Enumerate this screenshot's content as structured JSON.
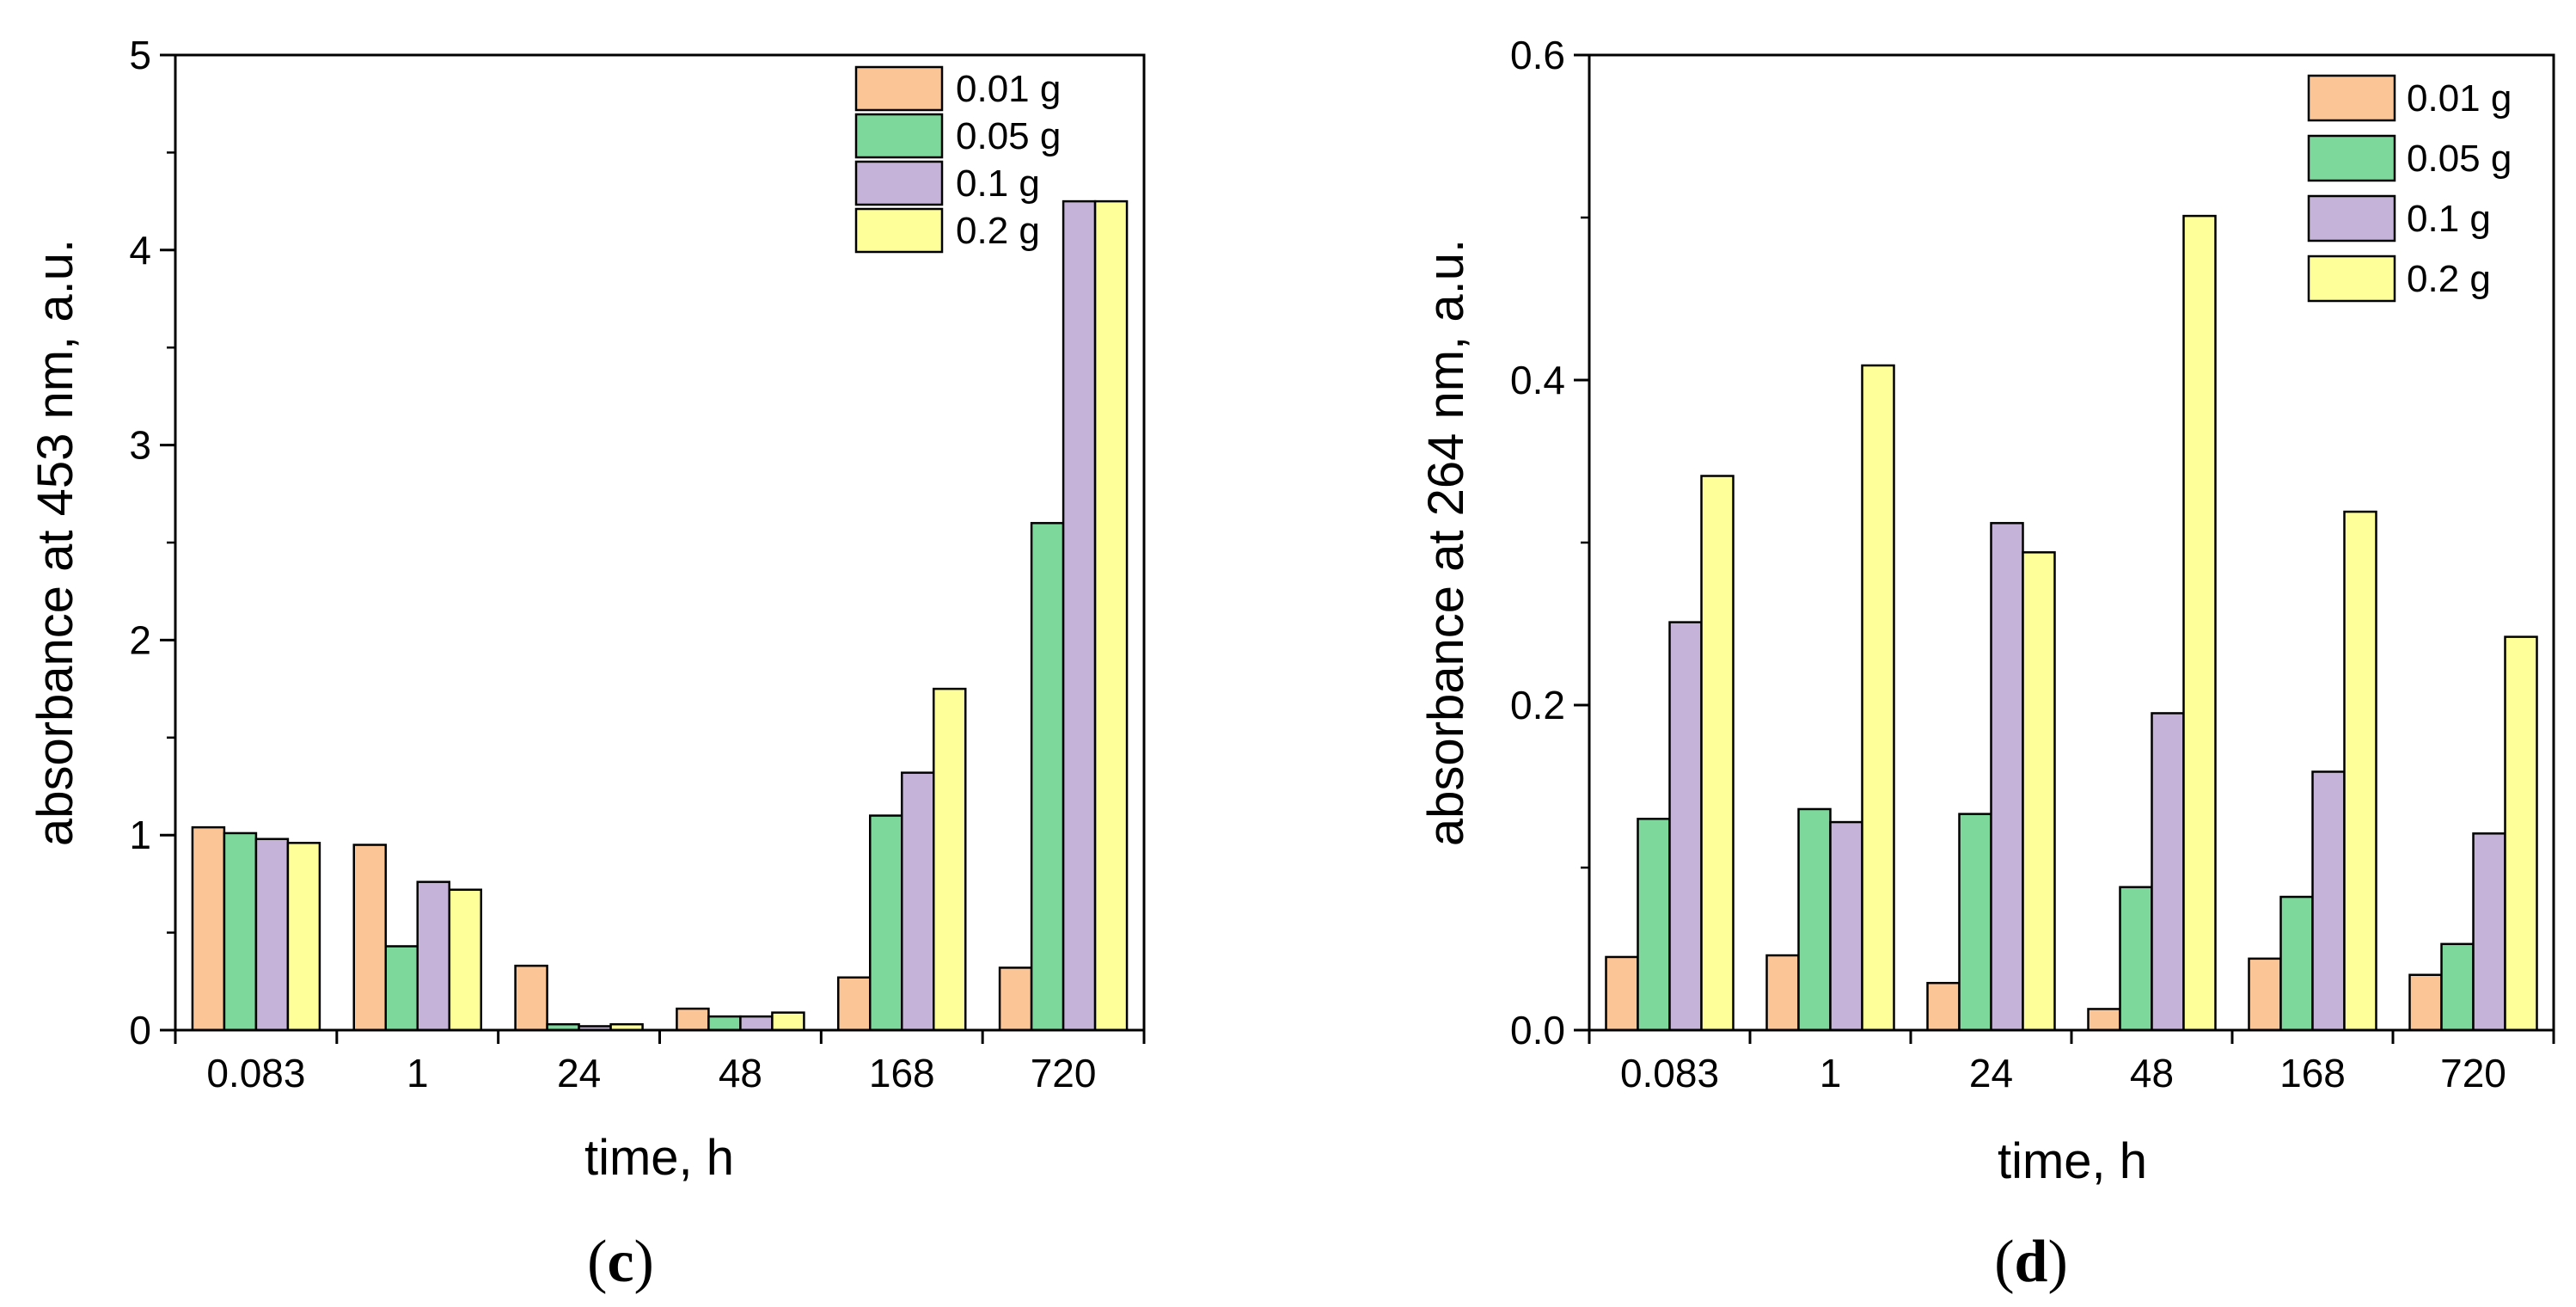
{
  "chart_data": [
    {
      "type": "bar",
      "panel_label": {
        "open": "(",
        "letter": "c",
        "close": ")"
      },
      "title": "",
      "xlabel": "time, h",
      "ylabel": "absorbance at 453 nm, a.u.",
      "categories": [
        "0.083",
        "1",
        "24",
        "48",
        "168",
        "720"
      ],
      "ylim": [
        0,
        5
      ],
      "yticks": [
        0,
        1,
        2,
        3,
        4,
        5
      ],
      "ytick_labels": [
        "0",
        "1",
        "2",
        "3",
        "4",
        "5"
      ],
      "ytick_minor_step": 0.5,
      "legend_position": "top-right",
      "series": [
        {
          "name": "0.01 g",
          "color": "#fcc595",
          "values": [
            1.04,
            0.95,
            0.33,
            0.11,
            0.27,
            0.32
          ]
        },
        {
          "name": "0.05 g",
          "color": "#7dd99b",
          "values": [
            1.01,
            0.43,
            0.03,
            0.07,
            1.1,
            2.6
          ]
        },
        {
          "name": "0.1 g",
          "color": "#c6b3da",
          "values": [
            0.98,
            0.76,
            0.02,
            0.07,
            1.32,
            4.25
          ]
        },
        {
          "name": "0.2 g",
          "color": "#feff99",
          "values": [
            0.96,
            0.72,
            0.03,
            0.09,
            1.75,
            4.25
          ]
        }
      ]
    },
    {
      "type": "bar",
      "panel_label": {
        "open": "(",
        "letter": "d",
        "close": ")"
      },
      "title": "",
      "xlabel": "time, h",
      "ylabel": "absorbance at 264 nm, a.u.",
      "categories": [
        "0.083",
        "1",
        "24",
        "48",
        "168",
        "720"
      ],
      "ylim": [
        0,
        0.6
      ],
      "yticks": [
        0,
        0.2,
        0.4,
        0.6
      ],
      "ytick_labels": [
        "0.0",
        "0.2",
        "0.4",
        "0.6"
      ],
      "ytick_minor_step": 0.1,
      "legend_position": "top-right",
      "series": [
        {
          "name": "0.01 g",
          "color": "#fcc595",
          "values": [
            0.045,
            0.046,
            0.029,
            0.013,
            0.044,
            0.034
          ]
        },
        {
          "name": "0.05 g",
          "color": "#7dd99b",
          "values": [
            0.13,
            0.136,
            0.133,
            0.088,
            0.082,
            0.053
          ]
        },
        {
          "name": "0.1 g",
          "color": "#c6b3da",
          "values": [
            0.251,
            0.128,
            0.312,
            0.195,
            0.159,
            0.121
          ]
        },
        {
          "name": "0.2 g",
          "color": "#feff99",
          "values": [
            0.341,
            0.409,
            0.294,
            0.501,
            0.319,
            0.242
          ]
        }
      ]
    }
  ]
}
